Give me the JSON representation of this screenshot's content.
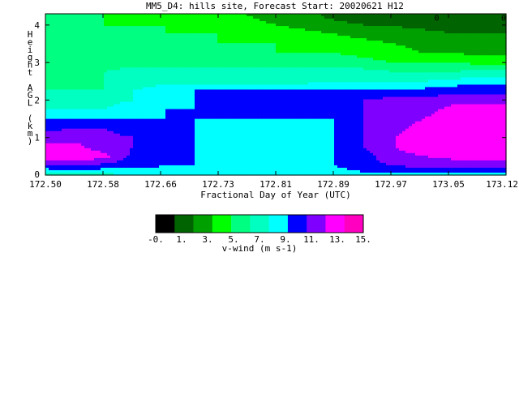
{
  "chart_data": {
    "type": "heatmap",
    "title": "MM5_D4: hills site,  Forecast Start: 20020621 H12",
    "xlabel": "Fractional Day of Year (UTC)",
    "ylabel": "Height AGL (km)",
    "xlim": [
      172.5,
      173.12
    ],
    "ylim": [
      0,
      4.3
    ],
    "x_ticks": [
      "172.50",
      "172.58",
      "172.66",
      "172.73",
      "172.81",
      "172.89",
      "172.97",
      "173.05",
      "173.12"
    ],
    "y_ticks": [
      "0",
      "1",
      "2",
      "3",
      "4"
    ],
    "contour_labels": [
      {
        "text": "0",
        "x": 173.03,
        "y": 4.2
      },
      {
        "text": "0",
        "x": 173.12,
        "y": 4.2
      }
    ],
    "colorbar": {
      "label": "v-wind (m s-1)",
      "tick_labels": [
        "-0.",
        "1.",
        "3.",
        "5.",
        "7.",
        "9.",
        "11.",
        "13.",
        "15."
      ],
      "colors": [
        "#000000",
        "#006400",
        "#00a000",
        "#00ff00",
        "#00ff80",
        "#00ffc0",
        "#00ffff",
        "#0000ff",
        "#8000ff",
        "#ff00ff",
        "#ff00c0"
      ]
    },
    "x": [
      172.5,
      172.54,
      172.58,
      172.62,
      172.66,
      172.7,
      172.73,
      172.77,
      172.81,
      172.85,
      172.89,
      172.93,
      172.97,
      173.01,
      173.05,
      173.09,
      173.12
    ],
    "y": [
      0,
      0.25,
      0.5,
      0.75,
      1.0,
      1.25,
      1.5,
      1.75,
      2.0,
      2.25,
      2.5,
      2.75,
      3.0,
      3.25,
      3.5,
      3.75,
      4.0,
      4.25
    ],
    "z": [
      [
        7,
        7,
        7,
        7.5,
        8,
        8,
        8,
        8,
        8,
        8,
        8,
        8.5,
        8.5,
        8.5,
        8.5,
        8.5,
        8.5
      ],
      [
        10,
        10.5,
        10,
        9.5,
        9,
        9,
        8.5,
        7.5,
        7.5,
        8.5,
        9,
        10,
        10.5,
        11,
        11,
        11,
        11
      ],
      [
        13,
        13.5,
        12.5,
        10,
        9,
        9,
        8,
        7.5,
        7.5,
        8,
        9,
        10,
        11.5,
        12,
        12.5,
        12.5,
        12.5
      ],
      [
        12.5,
        12.5,
        11,
        10.5,
        9,
        9,
        7.5,
        7.5,
        7.5,
        8,
        9,
        10.5,
        12,
        13,
        13,
        13,
        13
      ],
      [
        11.5,
        11.5,
        11,
        10.5,
        9,
        9,
        7.5,
        7.5,
        7.5,
        7.5,
        9,
        10.5,
        12,
        13,
        13.5,
        13.5,
        13.5
      ],
      [
        10,
        10.5,
        10.5,
        9.5,
        9,
        9,
        8.5,
        7.5,
        7.5,
        8,
        9,
        10.5,
        11.5,
        12.5,
        13,
        13,
        13
      ],
      [
        9,
        9,
        9,
        9,
        9,
        9,
        9,
        9,
        9,
        9,
        9,
        10.5,
        11.5,
        12,
        13,
        13,
        13
      ],
      [
        7.5,
        7.5,
        7.5,
        8.5,
        9,
        9,
        9,
        9,
        9,
        9,
        9,
        10.5,
        11,
        11.5,
        12.5,
        13,
        13
      ],
      [
        7,
        6.5,
        7,
        7.5,
        8.5,
        9,
        9,
        9,
        9,
        9,
        9,
        10.5,
        11,
        11,
        11.5,
        11.5,
        11.5
      ],
      [
        6,
        6,
        6,
        7.5,
        8.5,
        9,
        9,
        9,
        9,
        9,
        9,
        9,
        9.5,
        9.5,
        10,
        10,
        10
      ],
      [
        5.5,
        5.5,
        6,
        6.5,
        7,
        7,
        7,
        7,
        7,
        7,
        7.5,
        7.5,
        7.5,
        7.5,
        8,
        8.5,
        8.5
      ],
      [
        5.5,
        5.5,
        6,
        6.5,
        6.5,
        6.5,
        6.5,
        6.5,
        6.5,
        6.5,
        6.5,
        6.5,
        6,
        6,
        6,
        6.5,
        6.5
      ],
      [
        5,
        5,
        5.5,
        5.5,
        5.5,
        5.5,
        5.5,
        5.5,
        5.5,
        5.5,
        5.5,
        5,
        4.5,
        4.5,
        4.5,
        4,
        4
      ],
      [
        5,
        5,
        4.5,
        4.5,
        4.5,
        4.5,
        4.5,
        4.5,
        4.5,
        4.5,
        4.5,
        4,
        3.5,
        3,
        3,
        2.5,
        2.5
      ],
      [
        5,
        5,
        4.5,
        4.5,
        4.5,
        4.5,
        4.5,
        4.5,
        4.5,
        4,
        4,
        3.5,
        3,
        2.5,
        2.5,
        2,
        2
      ],
      [
        5,
        4.5,
        4.5,
        4.5,
        4.5,
        4.5,
        4.5,
        4,
        4,
        3.5,
        3,
        2.5,
        2,
        2,
        1.5,
        1.5,
        1.5
      ],
      [
        5,
        4.5,
        4.5,
        4.5,
        4.5,
        4,
        4,
        3.5,
        3,
        2.5,
        2,
        1.5,
        1.5,
        1,
        1,
        0.8,
        0.8
      ],
      [
        5,
        4.5,
        4.5,
        4,
        4,
        3.5,
        3.5,
        3,
        2.5,
        2,
        1,
        0.5,
        0.2,
        0.2,
        0.2,
        0.5,
        0.5
      ]
    ]
  }
}
